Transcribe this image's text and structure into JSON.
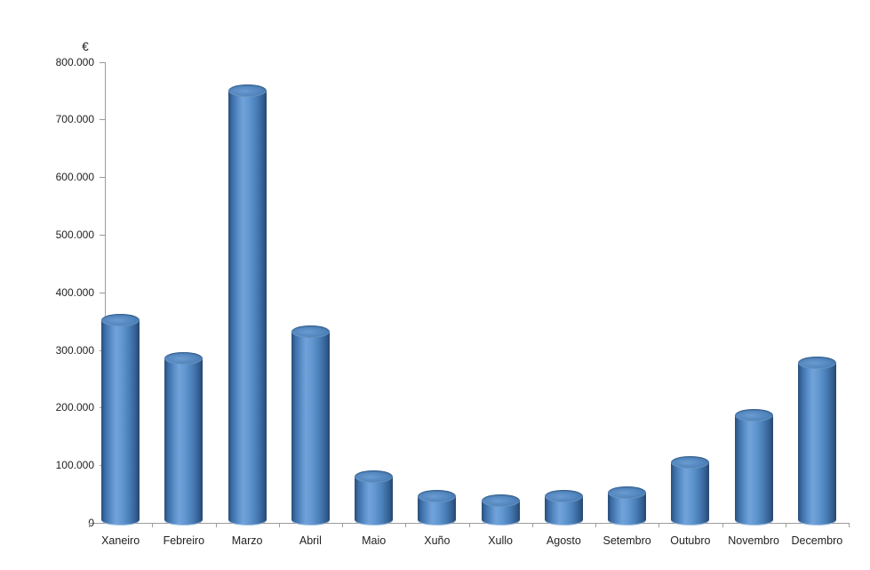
{
  "chart_data": {
    "type": "bar",
    "subtype": "3d-cylinder",
    "title": "",
    "xlabel": "",
    "ylabel": "€",
    "currency_symbol": "€",
    "categories": [
      "Xaneiro",
      "Febreiro",
      "Marzo",
      "Abril",
      "Maio",
      "Xuño",
      "Xullo",
      "Agosto",
      "Setembro",
      "Outubro",
      "Novembro",
      "Decembro"
    ],
    "values": [
      352000,
      286000,
      750000,
      332000,
      80000,
      47000,
      38000,
      46000,
      53000,
      105000,
      187000,
      278000
    ],
    "ylim": [
      0,
      800000
    ],
    "y_ticks": [
      {
        "value": 0,
        "label": "0"
      },
      {
        "value": 100000,
        "label": "100.000"
      },
      {
        "value": 200000,
        "label": "200.000"
      },
      {
        "value": 300000,
        "label": "300.000"
      },
      {
        "value": 400000,
        "label": "400.000"
      },
      {
        "value": 500000,
        "label": "500.000"
      },
      {
        "value": 600000,
        "label": "600.000"
      },
      {
        "value": 700000,
        "label": "700.000"
      },
      {
        "value": 800000,
        "label": "800.000"
      }
    ],
    "grid": false,
    "legend": false,
    "colors": {
      "bar_fill_main": "#4f81bd",
      "bar_highlight": "#71a3da",
      "bar_shadow": "#26476d",
      "axis_line": "#9c9c9c",
      "label_text": "#1f1f1f",
      "background": "#ffffff"
    }
  }
}
